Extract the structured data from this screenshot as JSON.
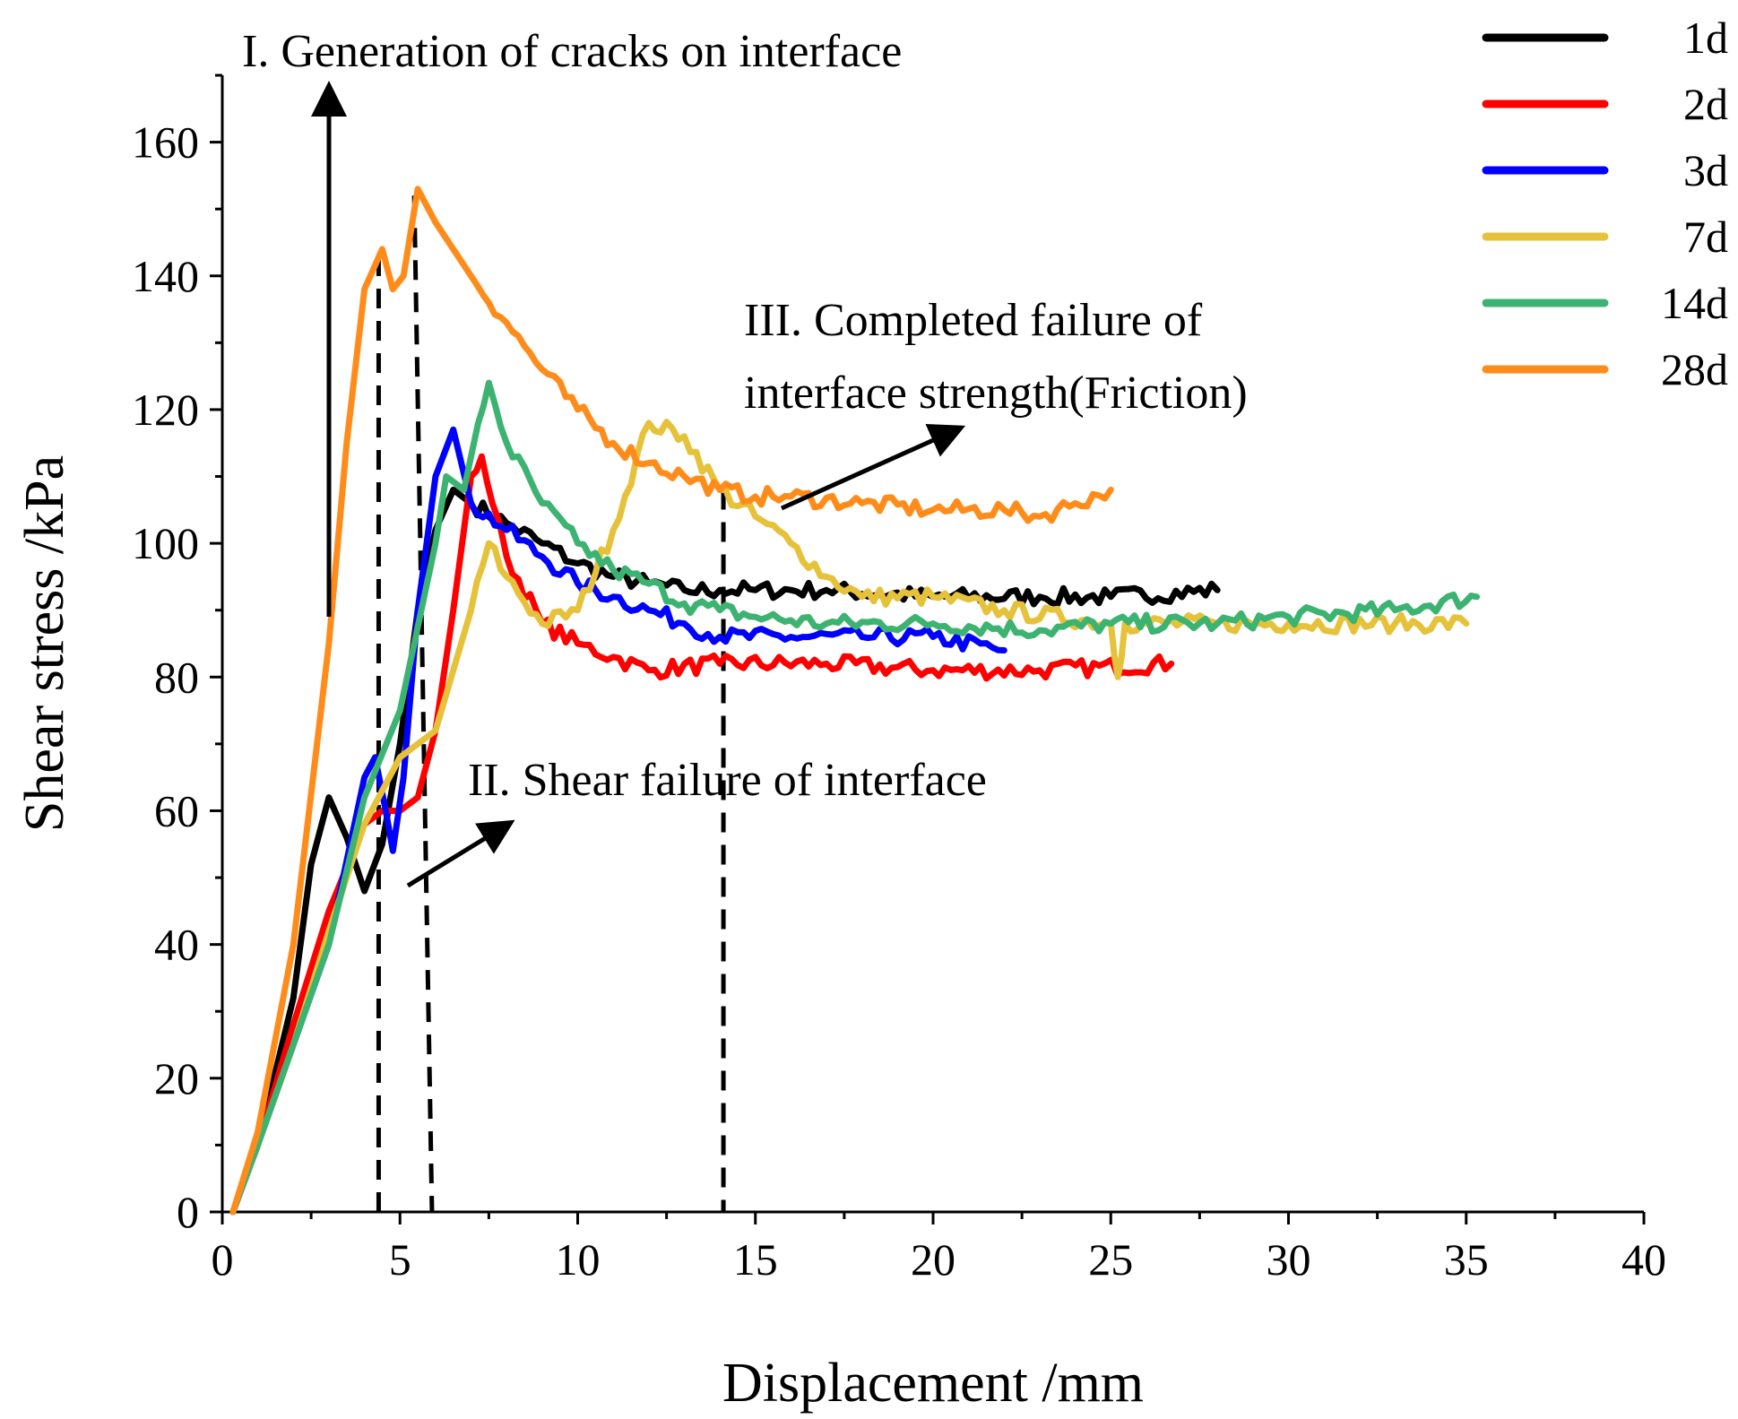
{
  "chart_data": {
    "type": "line",
    "title": "",
    "xlabel": "Displacement /mm",
    "ylabel": "Shear stress /kPa",
    "xlim": [
      0,
      40
    ],
    "ylim": [
      0,
      170
    ],
    "xticks": [
      0,
      5,
      10,
      15,
      20,
      25,
      30,
      35,
      40
    ],
    "yticks": [
      0,
      20,
      40,
      60,
      80,
      100,
      120,
      140,
      160
    ],
    "x_tick_labels": [
      "0",
      "5",
      "10",
      "15",
      "20",
      "25",
      "30",
      "35",
      "40"
    ],
    "y_tick_labels": [
      "0",
      "20",
      "40",
      "60",
      "80",
      "100",
      "120",
      "140",
      "160"
    ],
    "grid": false,
    "legend_position": "top-right",
    "series": [
      {
        "name": "1d",
        "color": "#000000",
        "x": [
          0.3,
          1,
          2,
          2.5,
          3,
          3.5,
          4,
          4.5,
          5,
          5.5,
          6,
          6.5,
          7,
          8,
          9,
          10,
          11,
          12,
          13,
          14,
          15,
          17,
          20,
          23,
          25,
          28
        ],
        "y": [
          0,
          10,
          32,
          52,
          62,
          56,
          48,
          55,
          70,
          90,
          102,
          108,
          106,
          103,
          100,
          97,
          95,
          94,
          93,
          93,
          93,
          93,
          92,
          92,
          92,
          93
        ]
      },
      {
        "name": "2d",
        "color": "#ff0000",
        "x": [
          0.3,
          1,
          2,
          3,
          4,
          4.5,
          5,
          5.5,
          6,
          6.5,
          7,
          7.3,
          7.6,
          8,
          9,
          10,
          11,
          12,
          14,
          17,
          20,
          23,
          26.7
        ],
        "y": [
          0,
          10,
          28,
          45,
          58,
          60,
          60,
          62,
          72,
          90,
          110,
          113,
          106,
          98,
          88,
          85,
          83,
          81,
          82,
          82,
          81,
          81,
          82
        ]
      },
      {
        "name": "3d",
        "color": "#0000ff",
        "x": [
          0.3,
          1,
          2,
          3,
          4,
          4.3,
          4.6,
          4.8,
          5.1,
          5.5,
          6,
          6.5,
          7,
          8,
          9,
          10,
          11,
          12,
          13,
          14,
          16,
          18,
          20,
          22
        ],
        "y": [
          0,
          10,
          25,
          40,
          65,
          68,
          60,
          54,
          65,
          90,
          110,
          117,
          106,
          102,
          98,
          94,
          92,
          90,
          88,
          86,
          86,
          86,
          86,
          84
        ]
      },
      {
        "name": "7d",
        "color": "#e5c23a",
        "x": [
          0.3,
          1,
          2,
          3,
          4,
          5,
          6,
          7,
          7.5,
          8,
          9,
          10,
          11,
          12,
          13,
          14,
          15,
          16,
          17,
          18,
          20,
          22,
          25,
          25.2,
          25.4,
          28,
          30,
          33,
          35
        ],
        "y": [
          0,
          10,
          25,
          42,
          58,
          68,
          72,
          90,
          100,
          95,
          88,
          90,
          102,
          118,
          116,
          108,
          104,
          100,
          95,
          92,
          92,
          90,
          88,
          80,
          88,
          88,
          88,
          88,
          88
        ]
      },
      {
        "name": "14d",
        "color": "#3cb371",
        "x": [
          0.3,
          1,
          2,
          3,
          4,
          5,
          6,
          6.3,
          6.8,
          7.2,
          7.5,
          8,
          9,
          10,
          11,
          12,
          13,
          14,
          15,
          17,
          20,
          23,
          25,
          28,
          30,
          33,
          35.3
        ],
        "y": [
          0,
          10,
          25,
          40,
          62,
          75,
          100,
          110,
          108,
          118,
          124,
          115,
          106,
          100,
          96,
          94,
          91,
          90,
          89,
          88,
          88,
          87,
          88,
          88,
          89,
          90,
          92
        ]
      },
      {
        "name": "28d",
        "color": "#ff8c1a",
        "x": [
          0.3,
          1,
          2,
          3,
          3.5,
          4,
          4.5,
          4.8,
          5.1,
          5.5,
          6,
          7,
          8,
          9,
          10,
          11,
          12,
          13,
          14,
          15,
          16,
          18,
          20,
          22,
          23,
          24,
          25
        ],
        "y": [
          0,
          12,
          40,
          85,
          115,
          138,
          144,
          138,
          140,
          153,
          148,
          140,
          133,
          126,
          120,
          115,
          112,
          110,
          108,
          107,
          107,
          106,
          105,
          105,
          104,
          106,
          108
        ]
      }
    ],
    "reference_lines": [
      {
        "name": "dash-1",
        "x": [
          4.4,
          4.4
        ],
        "y": [
          0,
          144
        ]
      },
      {
        "name": "dash-2",
        "x": [
          5.4,
          5.9
        ],
        "y": [
          152,
          0
        ]
      },
      {
        "name": "dash-3",
        "x": [
          14.1,
          14.1
        ],
        "y": [
          108,
          0
        ]
      }
    ],
    "annotations": [
      {
        "name": "annotation-1",
        "text": "I. Generation of cracks on interface"
      },
      {
        "name": "annotation-2",
        "text": "II. Shear failure of interface"
      },
      {
        "name": "annotation-3-line1",
        "text": "III. Completed failure of"
      },
      {
        "name": "annotation-3-line2",
        "text": "interface strength(Friction)"
      }
    ]
  }
}
